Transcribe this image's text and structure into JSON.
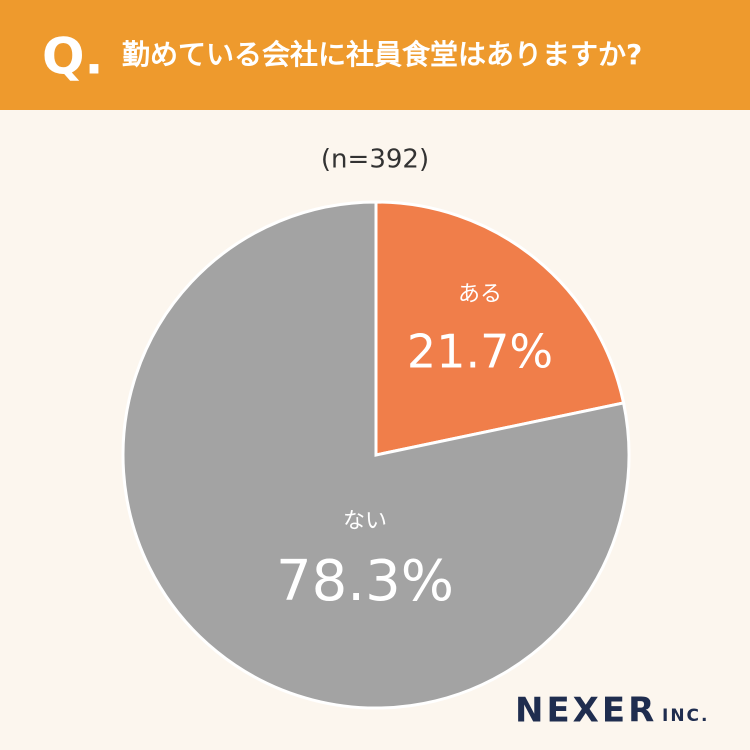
{
  "chart_data": {
    "type": "pie",
    "question_mark": "Q.",
    "title": "勤めている会社に社員食堂はありますか?",
    "subtitle": "(n=392)",
    "categories": [
      "ある",
      "ない"
    ],
    "values": [
      21.7,
      78.3
    ],
    "value_labels": [
      "21.7%",
      "78.3%"
    ],
    "colors": [
      "#f07e4a",
      "#a3a3a3"
    ],
    "brand": "NEXER",
    "brand_suffix": "INC."
  }
}
